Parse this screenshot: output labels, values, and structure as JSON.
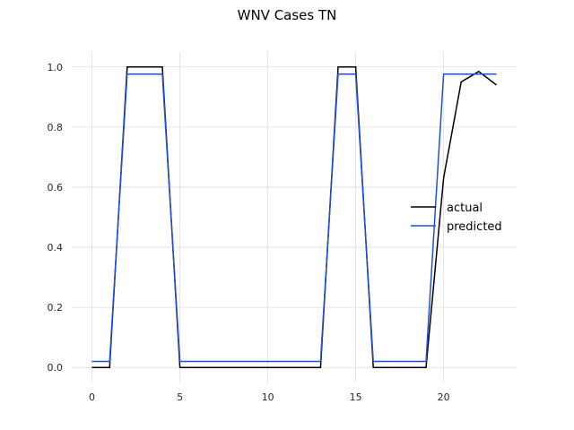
{
  "chart_data": {
    "type": "line",
    "title": "WNV Cases TN",
    "xlabel": "",
    "ylabel": "",
    "xlim": [
      -1.15,
      24.15
    ],
    "ylim": [
      -0.05,
      1.05
    ],
    "x_ticks": [
      0,
      5,
      10,
      15,
      20
    ],
    "y_ticks": [
      0.0,
      0.2,
      0.4,
      0.6,
      0.8,
      1.0
    ],
    "y_tick_labels": [
      "0.0",
      "0.2",
      "0.4",
      "0.6",
      "0.8",
      "1.0"
    ],
    "grid": true,
    "legend_position": "center-right",
    "series": [
      {
        "name": "actual",
        "color": "#000000",
        "x": [
          0,
          1,
          2,
          3,
          4,
          5,
          6,
          7,
          8,
          9,
          10,
          11,
          12,
          13,
          14,
          15,
          16,
          17,
          18,
          19,
          20,
          21,
          22,
          23
        ],
        "values": [
          0,
          0,
          1,
          1,
          1,
          0,
          0,
          0,
          0,
          0,
          0,
          0,
          0,
          0,
          1,
          1,
          0,
          0,
          0,
          0,
          0.63,
          0.95,
          0.985,
          0.94
        ]
      },
      {
        "name": "predicted",
        "color": "#1f4fe0",
        "x": [
          0,
          1,
          2,
          3,
          4,
          5,
          6,
          7,
          8,
          9,
          10,
          11,
          12,
          13,
          14,
          15,
          16,
          17,
          18,
          19,
          20,
          21,
          22,
          23
        ],
        "values": [
          0.02,
          0.02,
          0.976,
          0.976,
          0.976,
          0.02,
          0.02,
          0.02,
          0.02,
          0.02,
          0.02,
          0.02,
          0.02,
          0.02,
          0.976,
          0.976,
          0.02,
          0.02,
          0.02,
          0.02,
          0.976,
          0.976,
          0.976,
          0.976
        ]
      }
    ]
  }
}
